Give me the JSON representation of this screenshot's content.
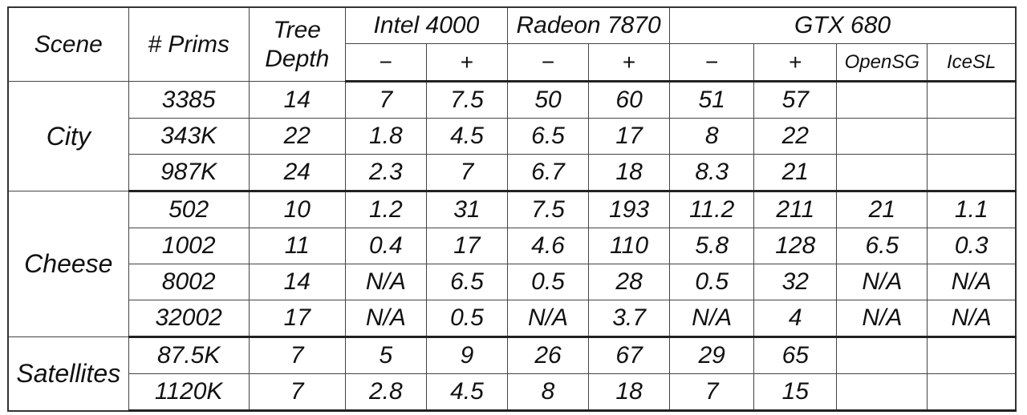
{
  "header": {
    "scene": "Scene",
    "prims": "# Prims",
    "depth_line1": "Tree",
    "depth_line2": "Depth",
    "intel": "Intel 4000",
    "radeon": "Radeon 7870",
    "gtx": "GTX 680",
    "minus": "−",
    "plus": "+",
    "opensg": "OpenSG",
    "icesl": "IceSL"
  },
  "groups": [
    {
      "scene": "City",
      "rows": [
        {
          "prims": "3385",
          "depth": "14",
          "intel_minus": "7",
          "intel_plus": "7.5",
          "radeon_minus": "50",
          "radeon_plus": "60",
          "gtx_minus": "51",
          "gtx_plus": "57",
          "opensg": "",
          "icesl": ""
        },
        {
          "prims": "343K",
          "depth": "22",
          "intel_minus": "1.8",
          "intel_plus": "4.5",
          "radeon_minus": "6.5",
          "radeon_plus": "17",
          "gtx_minus": "8",
          "gtx_plus": "22",
          "opensg": "",
          "icesl": ""
        },
        {
          "prims": "987K",
          "depth": "24",
          "intel_minus": "2.3",
          "intel_plus": "7",
          "radeon_minus": "6.7",
          "radeon_plus": "18",
          "gtx_minus": "8.3",
          "gtx_plus": "21",
          "opensg": "",
          "icesl": ""
        }
      ]
    },
    {
      "scene": "Cheese",
      "rows": [
        {
          "prims": "502",
          "depth": "10",
          "intel_minus": "1.2",
          "intel_plus": "31",
          "radeon_minus": "7.5",
          "radeon_plus": "193",
          "gtx_minus": "11.2",
          "gtx_plus": "211",
          "opensg": "21",
          "icesl": "1.1"
        },
        {
          "prims": "1002",
          "depth": "11",
          "intel_minus": "0.4",
          "intel_plus": "17",
          "radeon_minus": "4.6",
          "radeon_plus": "110",
          "gtx_minus": "5.8",
          "gtx_plus": "128",
          "opensg": "6.5",
          "icesl": "0.3"
        },
        {
          "prims": "8002",
          "depth": "14",
          "intel_minus": "N/A",
          "intel_plus": "6.5",
          "radeon_minus": "0.5",
          "radeon_plus": "28",
          "gtx_minus": "0.5",
          "gtx_plus": "32",
          "opensg": "N/A",
          "icesl": "N/A"
        },
        {
          "prims": "32002",
          "depth": "17",
          "intel_minus": "N/A",
          "intel_plus": "0.5",
          "radeon_minus": "N/A",
          "radeon_plus": "3.7",
          "gtx_minus": "N/A",
          "gtx_plus": "4",
          "opensg": "N/A",
          "icesl": "N/A"
        }
      ]
    },
    {
      "scene": "Satellites",
      "rows": [
        {
          "prims": "87.5K",
          "depth": "7",
          "intel_minus": "5",
          "intel_plus": "9",
          "radeon_minus": "26",
          "radeon_plus": "67",
          "gtx_minus": "29",
          "gtx_plus": "65",
          "opensg": "",
          "icesl": ""
        },
        {
          "prims": "1120K",
          "depth": "7",
          "intel_minus": "2.8",
          "intel_plus": "4.5",
          "radeon_minus": "8",
          "radeon_plus": "18",
          "gtx_minus": "7",
          "gtx_plus": "15",
          "opensg": "",
          "icesl": ""
        }
      ]
    }
  ]
}
